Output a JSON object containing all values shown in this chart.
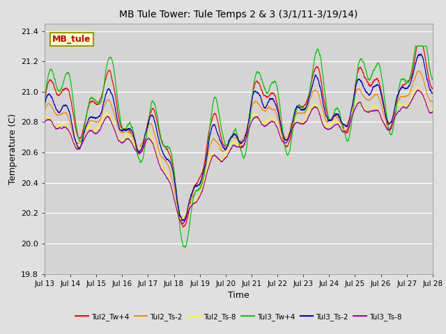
{
  "title": "MB Tule Tower: Tule Temps 2 & 3 (3/1/11-3/19/14)",
  "xlabel": "Time",
  "ylabel": "Temperature (C)",
  "ylim": [
    19.8,
    21.45
  ],
  "xlim": [
    0,
    15
  ],
  "xtick_labels": [
    "Jul 13",
    "Jul 14",
    "Jul 15",
    "Jul 16",
    "Jul 17",
    "Jul 18",
    "Jul 19",
    "Jul 20",
    "Jul 21",
    "Jul 22",
    "Jul 23",
    "Jul 24",
    "Jul 25",
    "Jul 26",
    "Jul 27",
    "Jul 28"
  ],
  "yticks": [
    19.8,
    20.0,
    20.2,
    20.4,
    20.6,
    20.8,
    21.0,
    21.2,
    21.4
  ],
  "fig_bg": "#e0e0e0",
  "ax_bg": "#d4d4d4",
  "watermark_text": "MB_tule",
  "watermark_color": "#cc0000",
  "watermark_bg": "#ffffcc",
  "watermark_edge": "#999900",
  "series": [
    {
      "name": "Tul2_Tw+4",
      "color": "#ff0000"
    },
    {
      "name": "Tul2_Ts-2",
      "color": "#ff8800"
    },
    {
      "name": "Tul2_Ts-8",
      "color": "#ffff00"
    },
    {
      "name": "Tul3_Tw+4",
      "color": "#00cc00"
    },
    {
      "name": "Tul3_Ts-2",
      "color": "#0000cc"
    },
    {
      "name": "Tul3_Ts-8",
      "color": "#aa00aa"
    }
  ]
}
